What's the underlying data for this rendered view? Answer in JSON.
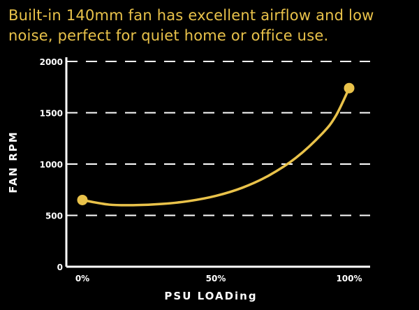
{
  "header": {
    "title": "Built-in 140mm fan has excellent airflow and low noise, perfect for quiet home or office use."
  },
  "colors": {
    "accent": "#e9c24a",
    "axis": "#ffffff",
    "background": "#000000"
  },
  "chart_data": {
    "type": "line",
    "xlabel": "PSU LOADing",
    "ylabel": "FAN RPM",
    "xlim": [
      0,
      100
    ],
    "ylim": [
      0,
      2000
    ],
    "x_ticks": [
      0,
      50,
      100
    ],
    "x_tick_labels": [
      "0%",
      "50%",
      "100%"
    ],
    "y_ticks": [
      0,
      500,
      1000,
      1500,
      2000
    ],
    "y_tick_labels": [
      "0",
      "500",
      "1000",
      "1500",
      "2000"
    ],
    "grid": "horizontal-dashed",
    "series": [
      {
        "x": [
          0,
          10,
          20,
          30,
          40,
          50,
          60,
          70,
          80,
          90,
          95,
          100
        ],
        "y": [
          650,
          605,
          600,
          612,
          640,
          690,
          770,
          890,
          1060,
          1300,
          1470,
          1740
        ]
      }
    ],
    "endpoint_markers": [
      {
        "x": 0,
        "y": 650
      },
      {
        "x": 100,
        "y": 1740
      }
    ]
  }
}
